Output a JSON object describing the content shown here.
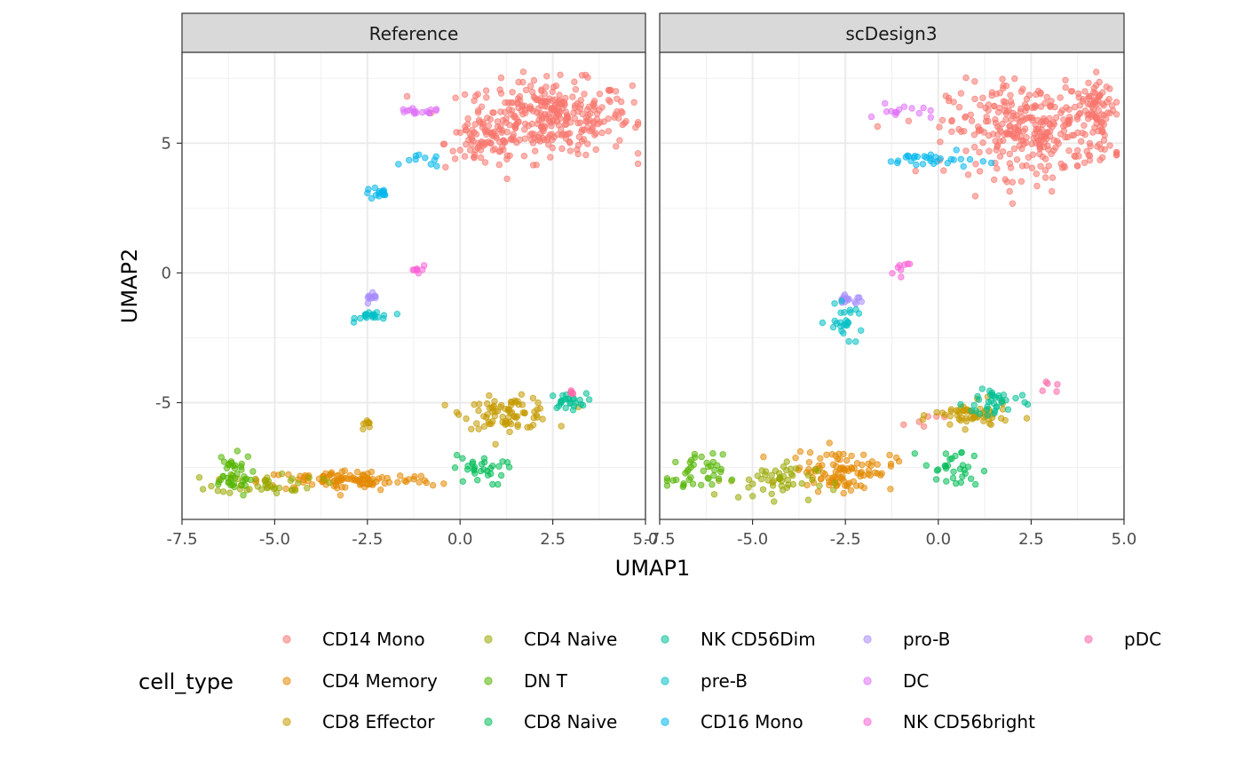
{
  "chart_data": {
    "type": "scatter",
    "xlabel": "UMAP1",
    "ylabel": "UMAP2",
    "xlim": [
      -7.5,
      5.0
    ],
    "ylim": [
      -9.5,
      8.5
    ],
    "x_ticks": [
      -7.5,
      -5.0,
      -2.5,
      0.0,
      2.5,
      5.0
    ],
    "x_tick_labels": [
      "-7.5",
      "-5.0",
      "-2.5",
      "0.0",
      "2.5",
      "5.0"
    ],
    "y_ticks": [
      5,
      0,
      -5
    ],
    "y_tick_labels": [
      "5",
      "0",
      "-5"
    ],
    "grid": true,
    "legend_title": "cell_type",
    "legend_position": "bottom",
    "facets": [
      "Reference",
      "scDesign3"
    ],
    "categories": [
      {
        "name": "CD14 Mono",
        "color": "#F8766D"
      },
      {
        "name": "CD4 Memory",
        "color": "#E38900"
      },
      {
        "name": "CD8 Effector",
        "color": "#C49A00"
      },
      {
        "name": "CD4 Naive",
        "color": "#99A800"
      },
      {
        "name": "DN T",
        "color": "#53B400"
      },
      {
        "name": "CD8 Naive",
        "color": "#00BC56"
      },
      {
        "name": "NK CD56Dim",
        "color": "#00C094"
      },
      {
        "name": "pre-B",
        "color": "#00BFC4"
      },
      {
        "name": "CD16 Mono",
        "color": "#00B6EB"
      },
      {
        "name": "pro-B",
        "color": "#A58AFF"
      },
      {
        "name": "DC",
        "color": "#DF70F8"
      },
      {
        "name": "NK CD56bright",
        "color": "#FB61D7"
      },
      {
        "name": "pDC",
        "color": "#FF66A8"
      }
    ],
    "clusters": {
      "Reference": [
        {
          "type": "CD14 Mono",
          "cx": 2.4,
          "cy": 6.0,
          "sx": 1.1,
          "sy": 0.7,
          "n": 320
        },
        {
          "type": "CD14 Mono",
          "cx": 0.6,
          "cy": 5.0,
          "sx": 0.5,
          "sy": 0.5,
          "n": 60
        },
        {
          "type": "DC",
          "cx": -1.2,
          "cy": 6.2,
          "sx": 0.35,
          "sy": 0.07,
          "n": 16
        },
        {
          "type": "CD16 Mono",
          "cx": -2.2,
          "cy": 3.05,
          "sx": 0.2,
          "sy": 0.12,
          "n": 15
        },
        {
          "type": "CD16 Mono",
          "cx": -1.0,
          "cy": 4.3,
          "sx": 0.25,
          "sy": 0.12,
          "n": 10
        },
        {
          "type": "NK CD56bright",
          "cx": -1.15,
          "cy": 0.15,
          "sx": 0.12,
          "sy": 0.1,
          "n": 8
        },
        {
          "type": "pro-B",
          "cx": -2.4,
          "cy": -1.05,
          "sx": 0.12,
          "sy": 0.12,
          "n": 10
        },
        {
          "type": "pre-B",
          "cx": -2.3,
          "cy": -1.65,
          "sx": 0.25,
          "sy": 0.1,
          "n": 20
        },
        {
          "type": "CD8 Effector",
          "cx": 1.3,
          "cy": -5.4,
          "sx": 0.6,
          "sy": 0.3,
          "n": 80
        },
        {
          "type": "CD8 Effector",
          "cx": -2.55,
          "cy": -5.85,
          "sx": 0.08,
          "sy": 0.15,
          "n": 8
        },
        {
          "type": "NK CD56Dim",
          "cx": 2.9,
          "cy": -4.95,
          "sx": 0.25,
          "sy": 0.15,
          "n": 25
        },
        {
          "type": "pDC",
          "cx": 3.0,
          "cy": -4.6,
          "sx": 0.08,
          "sy": 0.05,
          "n": 5
        },
        {
          "type": "CD4 Memory",
          "cx": -3.0,
          "cy": -8.0,
          "sx": 1.2,
          "sy": 0.2,
          "n": 110
        },
        {
          "type": "CD4 Naive",
          "cx": -5.2,
          "cy": -8.1,
          "sx": 0.7,
          "sy": 0.2,
          "n": 40
        },
        {
          "type": "DN T",
          "cx": -6.2,
          "cy": -7.8,
          "sx": 0.3,
          "sy": 0.4,
          "n": 40
        },
        {
          "type": "CD8 Naive",
          "cx": 0.5,
          "cy": -7.6,
          "sx": 0.35,
          "sy": 0.3,
          "n": 30
        }
      ],
      "scDesign3": [
        {
          "type": "CD14 Mono",
          "cx": 2.5,
          "cy": 5.5,
          "sx": 1.1,
          "sy": 0.9,
          "n": 320
        },
        {
          "type": "CD14 Mono",
          "cx": 4.3,
          "cy": 6.3,
          "sx": 0.2,
          "sy": 0.6,
          "n": 60
        },
        {
          "type": "CD14 Mono",
          "cx": -0.4,
          "cy": -5.7,
          "sx": 0.5,
          "sy": 0.15,
          "n": 6
        },
        {
          "type": "DC",
          "cx": -1.0,
          "cy": 6.2,
          "sx": 0.4,
          "sy": 0.15,
          "n": 14
        },
        {
          "type": "CD16 Mono",
          "cx": -0.2,
          "cy": 4.35,
          "sx": 0.6,
          "sy": 0.15,
          "n": 30
        },
        {
          "type": "NK CD56bright",
          "cx": -1.0,
          "cy": 0.2,
          "sx": 0.2,
          "sy": 0.15,
          "n": 8
        },
        {
          "type": "pro-B",
          "cx": -2.4,
          "cy": -1.0,
          "sx": 0.2,
          "sy": 0.15,
          "n": 14
        },
        {
          "type": "pre-B",
          "cx": -2.5,
          "cy": -1.9,
          "sx": 0.25,
          "sy": 0.3,
          "n": 25
        },
        {
          "type": "CD8 Effector",
          "cx": 0.9,
          "cy": -5.5,
          "sx": 0.5,
          "sy": 0.25,
          "n": 60
        },
        {
          "type": "NK CD56Dim",
          "cx": 1.5,
          "cy": -5.0,
          "sx": 0.4,
          "sy": 0.35,
          "n": 35
        },
        {
          "type": "pDC",
          "cx": 3.05,
          "cy": -4.45,
          "sx": 0.1,
          "sy": 0.1,
          "n": 5
        },
        {
          "type": "CD4 Memory",
          "cx": -2.6,
          "cy": -7.6,
          "sx": 0.7,
          "sy": 0.4,
          "n": 100
        },
        {
          "type": "CD4 Naive",
          "cx": -4.5,
          "cy": -8.0,
          "sx": 0.6,
          "sy": 0.35,
          "n": 50
        },
        {
          "type": "DN T",
          "cx": -6.6,
          "cy": -7.8,
          "sx": 0.4,
          "sy": 0.4,
          "n": 40
        },
        {
          "type": "CD8 Naive",
          "cx": 0.4,
          "cy": -7.6,
          "sx": 0.4,
          "sy": 0.4,
          "n": 30
        }
      ]
    }
  }
}
